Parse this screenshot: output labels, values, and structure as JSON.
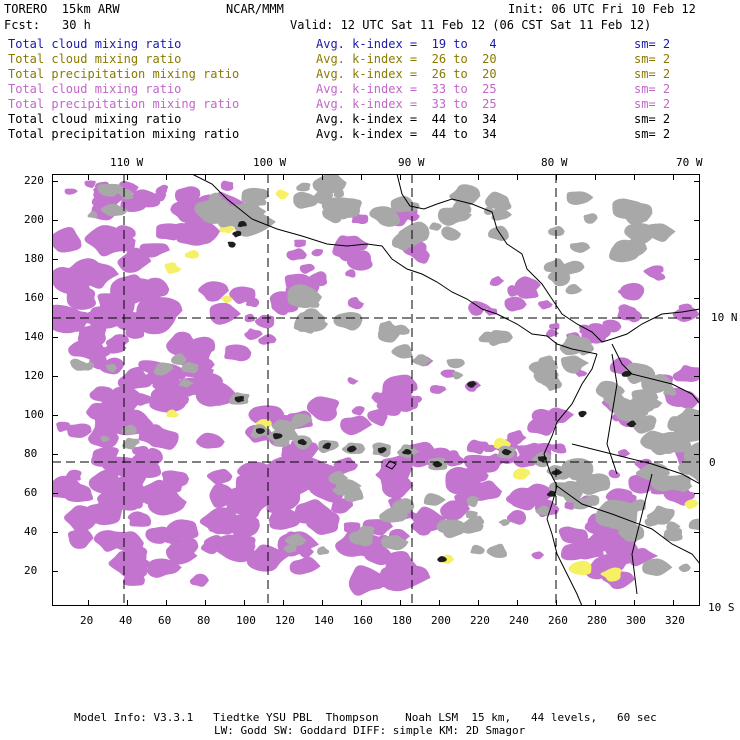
{
  "header": {
    "model": "TORERO  15km ARW",
    "center": "NCAR/MMM",
    "init": "Init: 06 UTC Fri 10 Feb 12",
    "fcst_label": "Fcst:",
    "fcst_value": "30 h",
    "valid": "Valid: 12 UTC Sat 11 Feb 12 (06 CST Sat 11 Feb 12)"
  },
  "legend": [
    {
      "field": "Total cloud mixing ratio",
      "range": "Avg. k-index =  19 to   4",
      "sm": "sm= 2",
      "color": "#1a1aa8"
    },
    {
      "field": "Total cloud mixing ratio",
      "range": "Avg. k-index =  26 to  20",
      "sm": "sm= 2",
      "color": "#8a7a00"
    },
    {
      "field": "Total precipitation mixing ratio",
      "range": "Avg. k-index =  26 to  20",
      "sm": "sm= 2",
      "color": "#8a7a00"
    },
    {
      "field": "Total cloud mixing ratio",
      "range": "Avg. k-index =  33 to  25",
      "sm": "sm= 2",
      "color": "#c266c9"
    },
    {
      "field": "Total precipitation mixing ratio",
      "range": "Avg. k-index =  33 to  25",
      "sm": "sm= 2",
      "color": "#c266c9"
    },
    {
      "field": "Total cloud mixing ratio",
      "range": "Avg. k-index =  44 to  34",
      "sm": "sm= 2",
      "color": "#000000"
    },
    {
      "field": "Total precipitation mixing ratio",
      "range": "Avg. k-index =  44 to  34",
      "sm": "sm= 2",
      "color": "#000000"
    }
  ],
  "map": {
    "top_lon_labels": [
      "110 W",
      "100 W",
      "90 W",
      "80 W",
      "70 W"
    ],
    "right_lat_labels": [
      "10 N",
      "0",
      "10 S"
    ],
    "y_grid_labels": [
      "220",
      "200",
      "180",
      "160",
      "140",
      "120",
      "100",
      "80",
      "60",
      "40",
      "20"
    ],
    "x_grid_labels": [
      "20",
      "40",
      "60",
      "80",
      "100",
      "120",
      "140",
      "160",
      "180",
      "200",
      "220",
      "240",
      "260",
      "280",
      "300",
      "320"
    ],
    "colors": {
      "gray_cloud": "#a8a8a8",
      "dark_core": "#1e1e1e",
      "purple": "#c274cf",
      "yellow": "#f5f064",
      "coast": "#000000"
    }
  },
  "footer": {
    "line1": "Model Info: V3.3.1   Tiedtke YSU PBL  Thompson    Noah LSM  15 km,   44 levels,   60 sec",
    "line2": "LW: Godd SW: Goddard DIFF: simple KM: 2D Smagor"
  }
}
